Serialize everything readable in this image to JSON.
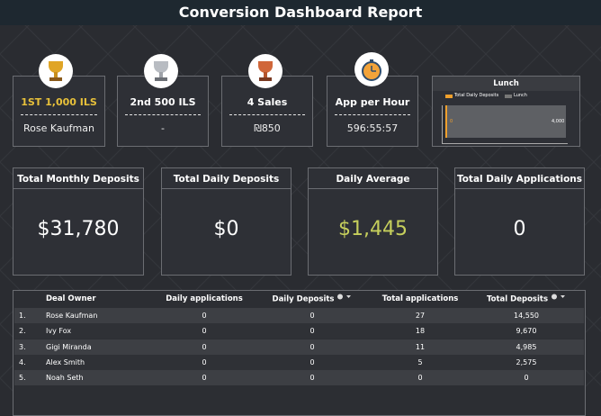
{
  "header": {
    "title": "Conversion Dashboard Report"
  },
  "leaders": [
    {
      "rank": "1ST 1,000 ILS",
      "value": "Rose Kaufman"
    },
    {
      "rank": "2nd 500 ILS",
      "value": "-"
    },
    {
      "rank": "4 Sales",
      "value": "₪850"
    },
    {
      "rank": "App per Hour",
      "value": "596:55:57"
    }
  ],
  "lunch": {
    "title": "Lunch",
    "legend": [
      "Total Daily Deposits",
      "Lunch"
    ],
    "start_label": "0",
    "end_label": "4,000"
  },
  "kpis": [
    {
      "title": "Total Monthly Deposits",
      "value": "$31,780"
    },
    {
      "title": "Total Daily Deposits",
      "value": "$0"
    },
    {
      "title": "Daily Average",
      "value": "$1,445"
    },
    {
      "title": "Total Daily Applications",
      "value": "0"
    }
  ],
  "table": {
    "columns": [
      "Deal Owner",
      "Daily applications",
      "Daily Deposits",
      "Total applications",
      "Total Deposits"
    ],
    "rows": [
      [
        "1.",
        "Rose Kaufman",
        "0",
        "0",
        "27",
        "14,550"
      ],
      [
        "2.",
        "Ivy Fox",
        "0",
        "0",
        "18",
        "9,670"
      ],
      [
        "3.",
        "Gigi Miranda",
        "0",
        "0",
        "11",
        "4,985"
      ],
      [
        "4.",
        "Alex Smith",
        "0",
        "0",
        "5",
        "2,575"
      ],
      [
        "5.",
        "Noah Seth",
        "0",
        "0",
        "0",
        "0"
      ]
    ]
  }
}
